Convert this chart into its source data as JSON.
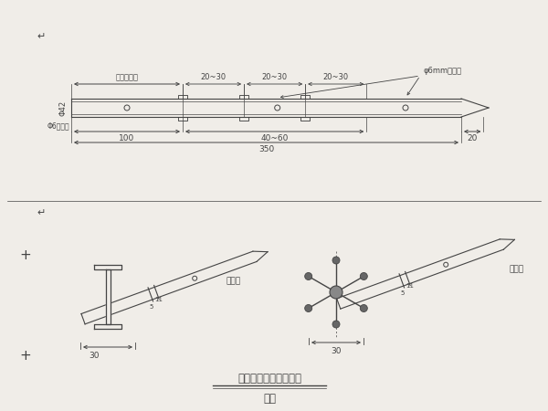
{
  "bg_color": "#f0ede8",
  "line_color": "#444444",
  "title": "小号管架设位置示意图",
  "subtitle": "示意",
  "top_labels": {
    "reserved_section": "预留止浆段",
    "spacing1": "20~30",
    "spacing2": "20~30",
    "spacing3": "20~30",
    "hole_label": "φ6mm注浆孔"
  },
  "bottom_labels": {
    "dim1": "100",
    "dim2": "40~60",
    "dim3": "20",
    "total": "350",
    "left_label": "Φ6加劲筋"
  },
  "dim_label_left": "Φ42",
  "section_label1": "钉花管",
  "section_label2": "钉花管",
  "dim_30_left": "30",
  "dim_30_right": "30"
}
